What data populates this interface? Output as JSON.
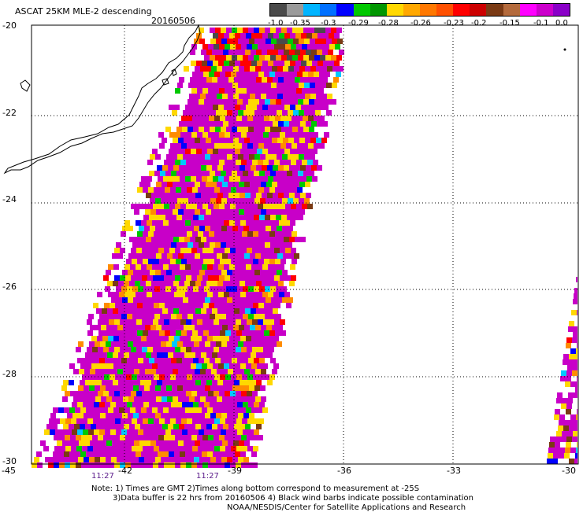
{
  "header": {
    "title": "ASCAT 25KM MLE-2 descending",
    "date": "20160506"
  },
  "colorbar": {
    "colors": [
      "#4a4a4a",
      "#9a9a9a",
      "#00b4ff",
      "#0070ff",
      "#0000ff",
      "#00c800",
      "#009600",
      "#ffd800",
      "#ffa800",
      "#ff7800",
      "#ff5000",
      "#ff0000",
      "#cc0000",
      "#7a3a14",
      "#b46a3c",
      "#ff00ff",
      "#cc00cc",
      "#8a00c8"
    ],
    "labels": [
      "-1.0",
      "-0.35",
      "-0.3",
      "-0.29",
      "-0.28",
      "-0.26",
      "-0.23",
      "-0.2",
      "-0.15",
      "-0.1",
      "0.0"
    ]
  },
  "axes": {
    "lat_labels": [
      "-20",
      "-22",
      "-24",
      "-26",
      "-28",
      "-30"
    ],
    "lon_labels": [
      "-45",
      "-42",
      "-39",
      "-36",
      "-33",
      "-30"
    ],
    "time_labels": [
      "11:27",
      "11:27"
    ]
  },
  "notes": {
    "line1": "Note: 1) Times are GMT 2)Times along bottom correspond to measurement at -25S",
    "line2": "3)Data buffer is 22 hrs from 20160506 4) Black wind barbs indicate possible contamination",
    "line3": "NOAA/NESDIS/Center for Satellite Applications and Research"
  },
  "palette": {
    "gray": "#4a4a4a",
    "cyan": "#00c8ff",
    "blue": "#0000ff",
    "green": "#00c800",
    "yellow": "#ffd800",
    "orange": "#ff8c00",
    "red": "#ff0000",
    "brown": "#7a3a14",
    "magenta": "#c800c8"
  }
}
